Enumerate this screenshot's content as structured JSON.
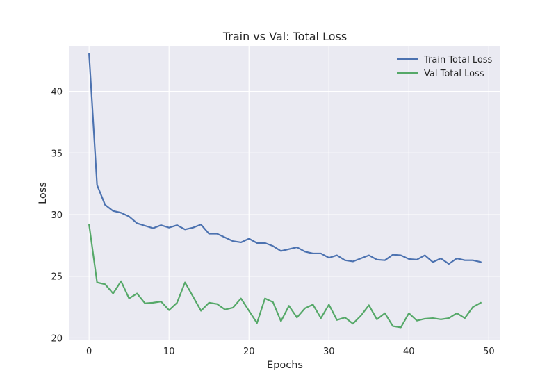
{
  "chart_data": {
    "type": "line",
    "title": "Train vs Val: Total Loss",
    "xlabel": "Epochs",
    "ylabel": "Loss",
    "xlim": [
      -2.45,
      51.45
    ],
    "ylim": [
      19.8,
      43.7
    ],
    "xticks": [
      0,
      10,
      20,
      30,
      40,
      50
    ],
    "yticks": [
      20,
      25,
      30,
      35,
      40
    ],
    "grid": true,
    "legend_position": "top-right",
    "x": [
      0,
      1,
      2,
      3,
      4,
      5,
      6,
      7,
      8,
      9,
      10,
      11,
      12,
      13,
      14,
      15,
      16,
      17,
      18,
      19,
      20,
      21,
      22,
      23,
      24,
      25,
      26,
      27,
      28,
      29,
      30,
      31,
      32,
      33,
      34,
      35,
      36,
      37,
      38,
      39,
      40,
      41,
      42,
      43,
      44,
      45,
      46,
      47,
      48,
      49
    ],
    "series": [
      {
        "name": "Train Total Loss",
        "color": "#4c72b0",
        "values": [
          43.05,
          32.4,
          30.8,
          30.3,
          30.15,
          29.85,
          29.3,
          29.1,
          28.9,
          29.15,
          28.95,
          29.15,
          28.8,
          28.95,
          29.2,
          28.45,
          28.45,
          28.15,
          27.85,
          27.75,
          28.05,
          27.7,
          27.7,
          27.45,
          27.05,
          27.2,
          27.35,
          27.0,
          26.85,
          26.85,
          26.5,
          26.7,
          26.3,
          26.2,
          26.45,
          26.7,
          26.35,
          26.3,
          26.75,
          26.7,
          26.4,
          26.35,
          26.7,
          26.15,
          26.45,
          26.0,
          26.45,
          26.3,
          26.3,
          26.15
        ]
      },
      {
        "name": "Val Total Loss",
        "color": "#55a868",
        "values": [
          29.2,
          24.5,
          24.35,
          23.6,
          24.6,
          23.2,
          23.6,
          22.8,
          22.85,
          22.95,
          22.25,
          22.85,
          24.5,
          23.35,
          22.2,
          22.85,
          22.75,
          22.3,
          22.45,
          23.2,
          22.2,
          21.2,
          23.2,
          22.9,
          21.35,
          22.6,
          21.65,
          22.4,
          22.7,
          21.6,
          22.7,
          21.45,
          21.65,
          21.15,
          21.8,
          22.65,
          21.5,
          22.0,
          20.95,
          20.85,
          22.0,
          21.4,
          21.55,
          21.6,
          21.5,
          21.6,
          22.0,
          21.6,
          22.5,
          22.85
        ]
      }
    ]
  }
}
